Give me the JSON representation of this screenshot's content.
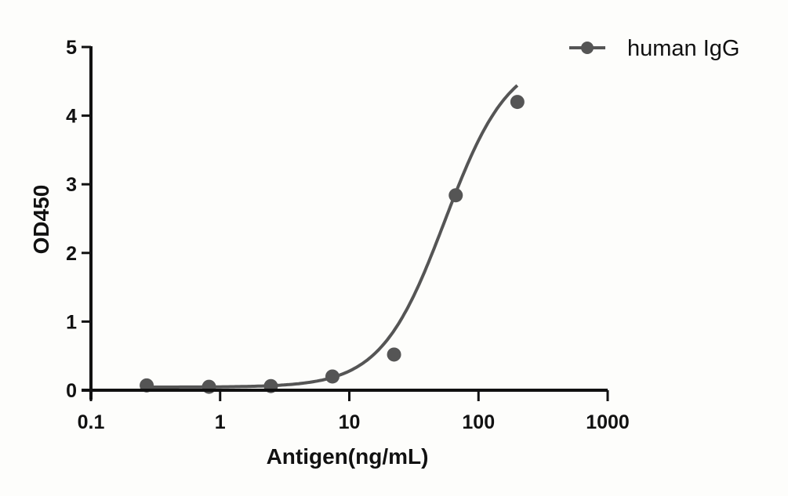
{
  "chart_data": {
    "type": "line",
    "title": "",
    "xlabel": "Antigen(ng/mL)",
    "ylabel": "OD450",
    "xscale": "log",
    "xlim": [
      0.1,
      1000
    ],
    "ylim": [
      0,
      5
    ],
    "x_ticks": [
      "0.1",
      "1",
      "10",
      "100",
      "1000"
    ],
    "y_ticks": [
      "0",
      "1",
      "2",
      "3",
      "4",
      "5"
    ],
    "grid": false,
    "legend_position": "top-right",
    "series": [
      {
        "name": "human IgG",
        "color": "#555555",
        "marker": "circle",
        "fit": "4PL sigmoidal curve",
        "x": [
          0.27,
          0.82,
          2.47,
          7.4,
          22.2,
          66.7,
          200
        ],
        "y": [
          0.07,
          0.05,
          0.06,
          0.2,
          0.52,
          2.84,
          4.2
        ]
      }
    ]
  },
  "legend": {
    "label": "human IgG"
  },
  "colors": {
    "axis": "#111111",
    "series": "#555555",
    "background": "#fdfdfb"
  }
}
